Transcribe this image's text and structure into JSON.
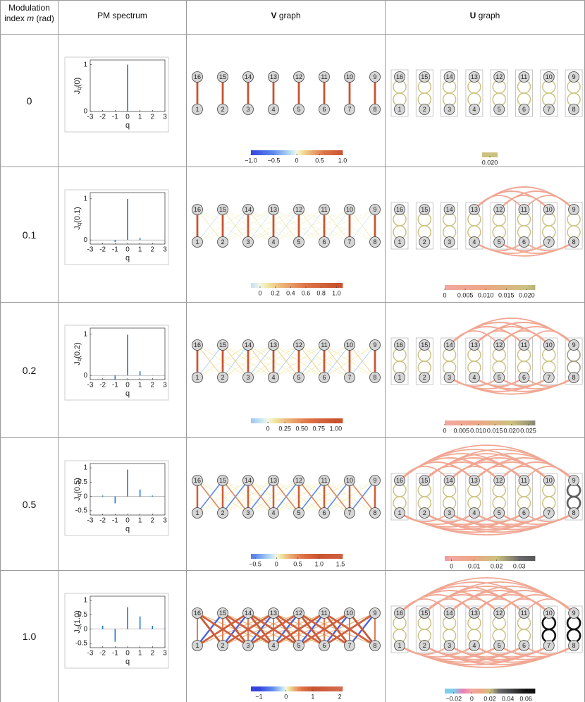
{
  "table": {
    "headers": [
      [
        "Modulation index",
        "m",
        "(rad)"
      ],
      [
        "PM spectrum"
      ],
      [
        "V",
        "graph"
      ],
      [
        "U",
        "graph"
      ]
    ],
    "graph_nodes": {
      "top": [
        16,
        15,
        14,
        13,
        12,
        11,
        10,
        9
      ],
      "bottom": [
        1,
        2,
        3,
        4,
        5,
        6,
        7,
        8
      ]
    },
    "spectrum_color": "#1f77d4",
    "rows": [
      {
        "m": "0",
        "spectrum": {
          "ylabel": [
            "J",
            "q",
            "(0)"
          ],
          "xlabel": "q",
          "x": [
            -3,
            -2,
            -1,
            0,
            1,
            2,
            3
          ],
          "values": [
            0,
            0,
            0,
            1,
            0,
            0,
            0
          ],
          "xlim": [
            -3,
            3
          ],
          "ylim": [
            0,
            1.1
          ],
          "xticks": [
            -3,
            -2,
            -1,
            0,
            1,
            2,
            3
          ],
          "yticks": [
            0,
            1
          ]
        },
        "v_edges": [
          [
            0,
            1
          ]
        ],
        "v_colorbar": {
          "lim": [
            -1,
            1
          ],
          "ticks": [
            {
              "value": -1,
              "label": "−1.0"
            },
            {
              "value": -0.5,
              "label": "−0.5"
            },
            0,
            0.5,
            {
              "value": 1,
              "label": "1.0"
            }
          ]
        },
        "u_loops": [
          0.02,
          0.02,
          0.02,
          0.02,
          0.02,
          0.02,
          0.02,
          0.02
        ],
        "u_colorbar": {
          "lim": [
            0.02,
            0.02
          ],
          "ticks": [
            {
              "value": 0.02,
              "label": "0.020"
            }
          ]
        }
      },
      {
        "m": "0.1",
        "spectrum": {
          "ylabel": [
            "J",
            "q",
            "(0.1)"
          ],
          "xlabel": "q",
          "x": [
            -3,
            -2,
            -1,
            0,
            1,
            2,
            3
          ],
          "values": [
            0,
            0.001,
            -0.05,
            0.998,
            0.05,
            0.001,
            0
          ],
          "xlim": [
            -3,
            3
          ],
          "ylim": [
            -0.1,
            1.15
          ],
          "xticks": [
            -3,
            -2,
            -1,
            0,
            1,
            2,
            3
          ],
          "yticks": [
            0,
            1
          ]
        },
        "v_edges": [
          [
            0,
            0.99
          ],
          [
            1,
            -0.1
          ],
          [
            -1,
            0.1
          ],
          [
            2,
            0.05
          ],
          [
            -2,
            0.05
          ],
          [
            3,
            0.03
          ],
          [
            -3,
            0.03
          ]
        ],
        "v_colorbar": {
          "lim": [
            -0.12,
            1.08
          ],
          "ticks": [
            0,
            0.2,
            0.4,
            0.6,
            0.8,
            {
              "value": 1,
              "label": "1.0"
            }
          ]
        },
        "u_loops": [
          0.02,
          0.02,
          0.02,
          0.02,
          0.02,
          0.02,
          0.02,
          0.02
        ],
        "u_arcs": {
          "from": 3,
          "min_span": 2
        },
        "u_arc_value": 0.005,
        "u_colorbar": {
          "lim": [
            0,
            0.022
          ],
          "ticks": [
            0,
            0.005,
            {
              "value": 0.01,
              "label": "0.010"
            },
            0.015,
            {
              "value": 0.02,
              "label": "0.020"
            }
          ]
        }
      },
      {
        "m": "0.2",
        "spectrum": {
          "ylabel": [
            "J",
            "q",
            "(0.2)"
          ],
          "xlabel": "q",
          "x": [
            -3,
            -2,
            -1,
            0,
            1,
            2,
            3
          ],
          "values": [
            0,
            0.005,
            -0.1,
            0.99,
            0.1,
            0.005,
            0
          ],
          "xlim": [
            -3,
            3
          ],
          "ylim": [
            -0.1,
            1.15
          ],
          "xticks": [
            -3,
            -2,
            -1,
            0,
            1,
            2,
            3
          ],
          "yticks": [
            0,
            1
          ]
        },
        "v_edges": [
          [
            0,
            0.98
          ],
          [
            1,
            -0.2
          ],
          [
            -1,
            0.2
          ],
          [
            2,
            0.1
          ],
          [
            -2,
            0.1
          ],
          [
            3,
            0.05
          ],
          [
            -3,
            0.05
          ]
        ],
        "v_colorbar": {
          "lim": [
            -0.25,
            1.1
          ],
          "ticks": [
            0,
            0.25,
            {
              "value": 0.5,
              "label": "0.50"
            },
            0.75,
            {
              "value": 1,
              "label": "1.00"
            }
          ]
        },
        "u_loops": [
          0.02,
          0.02,
          0.02,
          0.02,
          0.02,
          0.02,
          0.02,
          0.025
        ],
        "u_arcs": {
          "from": 2,
          "min_span": 2
        },
        "u_arc_value": 0.005,
        "u_colorbar": {
          "lim": [
            0,
            0.027
          ],
          "ticks": [
            0,
            0.005,
            {
              "value": 0.01,
              "label": "0.010"
            },
            0.015,
            {
              "value": 0.02,
              "label": "0.020"
            },
            0.025
          ]
        }
      },
      {
        "m": "0.5",
        "spectrum": {
          "ylabel": [
            "J",
            "q",
            "(0.5)"
          ],
          "xlabel": "q",
          "x": [
            -3,
            -2,
            -1,
            0,
            1,
            2,
            3
          ],
          "values": [
            -0.003,
            0.031,
            -0.242,
            0.938,
            0.242,
            0.031,
            0.003
          ],
          "xlim": [
            -3,
            3
          ],
          "ylim": [
            -0.65,
            1.15
          ],
          "xticks": [
            -3,
            -2,
            -1,
            0,
            1,
            2,
            3
          ],
          "yticks": [
            -0.5,
            0,
            0.5,
            1
          ]
        },
        "v_edges": [
          [
            0,
            0.88
          ],
          [
            1,
            -0.5
          ],
          [
            -1,
            0.5
          ],
          [
            2,
            0.1
          ],
          [
            -2,
            0.1
          ],
          [
            3,
            0.05
          ],
          [
            -3,
            0.05
          ]
        ],
        "v_colorbar": {
          "lim": [
            -0.6,
            1.55
          ],
          "ticks": [
            {
              "value": -0.5,
              "label": "−0.5"
            },
            0,
            0.5,
            {
              "value": 1,
              "label": "1.0"
            },
            1.5
          ]
        },
        "u_loops": [
          0.02,
          0.02,
          0.02,
          0.02,
          0.02,
          0.02,
          0.02,
          0.035
        ],
        "u_arcs": {
          "from": 0,
          "min_span": 2
        },
        "u_arc_value": 0.005,
        "u_colorbar": {
          "lim": [
            -0.003,
            0.037
          ],
          "ticks": [
            0,
            0.01,
            0.02,
            0.03
          ]
        }
      },
      {
        "m": "1.0",
        "spectrum": {
          "ylabel": [
            "J",
            "q",
            "(1.0)"
          ],
          "xlabel": "q",
          "x": [
            -3,
            -2,
            -1,
            0,
            1,
            2,
            3
          ],
          "values": [
            -0.02,
            0.115,
            -0.44,
            0.765,
            0.44,
            0.115,
            0.02
          ],
          "xlim": [
            -3,
            3
          ],
          "ylim": [
            -0.65,
            1.15
          ],
          "xticks": [
            -3,
            -2,
            -1,
            0,
            1,
            2,
            3
          ],
          "yticks": [
            -0.5,
            0,
            0.5,
            1
          ]
        },
        "v_edges": [
          [
            0,
            0.6
          ],
          [
            1,
            -0.8
          ],
          [
            -1,
            1.2
          ],
          [
            2,
            1.5
          ],
          [
            -2,
            1.5
          ],
          [
            3,
            0.3
          ],
          [
            -3,
            0.3
          ]
        ],
        "v_colorbar": {
          "lim": [
            -1.3,
            2.1
          ],
          "ticks": [
            {
              "value": -1,
              "label": "−1"
            },
            0,
            1,
            2
          ]
        },
        "u_loops": [
          0.02,
          0.02,
          0.02,
          0.02,
          0.02,
          0.02,
          0.06,
          0.06
        ],
        "u_arcs": {
          "from": 0,
          "min_span": 2
        },
        "u_arc_value": 0.005,
        "u_colorbar": {
          "lim": [
            -0.03,
            0.07
          ],
          "ticks": [
            {
              "value": -0.02,
              "label": "−0.02"
            },
            0,
            0.02,
            0.04,
            0.06
          ]
        }
      }
    ]
  }
}
